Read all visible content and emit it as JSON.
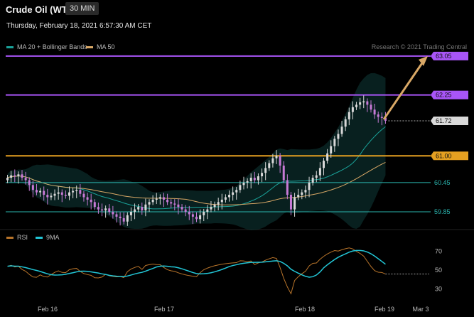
{
  "header": {
    "title": "Crude Oil (WTI)",
    "timeframe": "30 MIN",
    "datetime": "Thursday, February 18, 2021 6:57:30 AM CET"
  },
  "legend": {
    "items": [
      {
        "label": "MA 20 + Bollinger Bands",
        "color": "#1aa39a"
      },
      {
        "label": "MA 50",
        "color": "#d9a866"
      }
    ],
    "credit": "Research © 2021 Trading Central"
  },
  "price_labels": [
    {
      "text": "63.05",
      "value": 63.05,
      "style": "target",
      "color": "#a855f7"
    },
    {
      "text": "62.25",
      "value": 62.25,
      "style": "resistance",
      "color": "#a855f7"
    },
    {
      "text": "61.72",
      "value": 61.72,
      "style": "last",
      "color": "#d9d9d9"
    },
    {
      "text": "61.00",
      "value": 61.0,
      "style": "pivot",
      "color": "#e5a021"
    },
    {
      "text": "60.45",
      "value": 60.45,
      "style": "support",
      "color": "#2ab3ad"
    },
    {
      "text": "59.85",
      "value": 59.85,
      "style": "support",
      "color": "#2ab3ad"
    }
  ],
  "rsi": {
    "legend": [
      {
        "label": "RSI",
        "color": "#b8742a"
      },
      {
        "label": "9MA",
        "color": "#22c6d6"
      }
    ],
    "levels": [
      "70",
      "50",
      "30"
    ]
  },
  "x_axis": {
    "labels": [
      "Feb 16",
      "Feb 17",
      "Feb 18",
      "Feb 19",
      "Mar 3"
    ]
  },
  "chart_data": {
    "type": "candlestick",
    "price_range": [
      59.5,
      63.15
    ],
    "rsi_range": [
      20,
      80
    ],
    "closes": [
      60.55,
      60.6,
      60.58,
      60.62,
      60.55,
      60.5,
      60.4,
      60.3,
      60.25,
      60.28,
      60.2,
      60.15,
      60.18,
      60.22,
      60.25,
      60.2,
      60.18,
      60.25,
      60.28,
      60.3,
      60.22,
      60.15,
      60.1,
      60.05,
      59.95,
      59.9,
      59.88,
      59.92,
      59.85,
      59.8,
      59.75,
      59.72,
      59.65,
      59.78,
      59.85,
      59.9,
      59.95,
      59.88,
      60.0,
      60.05,
      60.1,
      60.12,
      60.15,
      60.1,
      60.05,
      60.02,
      60.0,
      59.95,
      59.9,
      59.85,
      59.8,
      59.75,
      59.7,
      59.78,
      59.85,
      59.9,
      59.95,
      60.0,
      60.05,
      60.1,
      60.15,
      60.2,
      60.25,
      60.3,
      60.4,
      60.45,
      60.48,
      60.55,
      60.5,
      60.58,
      60.65,
      60.75,
      60.85,
      60.95,
      61.0,
      60.8,
      60.5,
      60.2,
      59.9,
      60.15,
      60.2,
      60.25,
      60.3,
      60.45,
      60.55,
      60.6,
      60.75,
      60.9,
      61.05,
      61.2,
      61.35,
      61.45,
      61.6,
      61.75,
      61.9,
      62.0,
      62.05,
      62.1,
      62.12,
      62.05,
      61.95,
      61.85,
      61.8,
      61.78,
      61.72
    ]
  }
}
